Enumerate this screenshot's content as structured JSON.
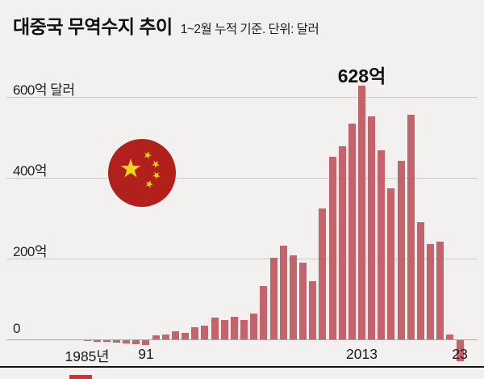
{
  "header": {
    "title": "대중국 무역수지 추이",
    "subtitle": "1~2월 누적 기준. 단위: 달러"
  },
  "annotation": {
    "peak_label": "628억"
  },
  "icons": {
    "china_flag": {
      "red": "#b2201b",
      "yellow": "#f8d515"
    }
  },
  "chart_data": {
    "type": "bar",
    "title": "대중국 무역수지 추이",
    "subtitle": "1~2월 누적 기준. 단위: 달러",
    "unit": "억 달러",
    "bar_color": "#c4636b",
    "ylim": [
      -60,
      650
    ],
    "grid": true,
    "x": [
      1985,
      1986,
      1987,
      1988,
      1989,
      1990,
      1991,
      1992,
      1993,
      1994,
      1995,
      1996,
      1997,
      1998,
      1999,
      2000,
      2001,
      2002,
      2003,
      2004,
      2005,
      2006,
      2007,
      2008,
      2009,
      2010,
      2011,
      2012,
      2013,
      2014,
      2015,
      2016,
      2017,
      2018,
      2019,
      2020,
      2021,
      2022,
      2023
    ],
    "values": [
      -2,
      -3,
      -4,
      -6,
      -8,
      -9,
      -11,
      11,
      12,
      20,
      17,
      30,
      35,
      55,
      48,
      57,
      49,
      64,
      132,
      202,
      233,
      209,
      190,
      145,
      324,
      453,
      478,
      535,
      628,
      552,
      469,
      375,
      443,
      556,
      290,
      237,
      243,
      12,
      -51
    ],
    "y_ticks": [
      {
        "value": 600,
        "label": "600억 달러"
      },
      {
        "value": 400,
        "label": "400억"
      },
      {
        "value": 200,
        "label": "200억"
      },
      {
        "value": 0,
        "label": "0"
      }
    ],
    "x_ticks": [
      {
        "year": 1985,
        "label": "1985년"
      },
      {
        "year": 1991,
        "label": "91"
      },
      {
        "year": 2013,
        "label": "2013"
      },
      {
        "year": 2023,
        "label": "23"
      }
    ],
    "peak": {
      "year": 2013,
      "value": 628,
      "label": "628억"
    }
  }
}
